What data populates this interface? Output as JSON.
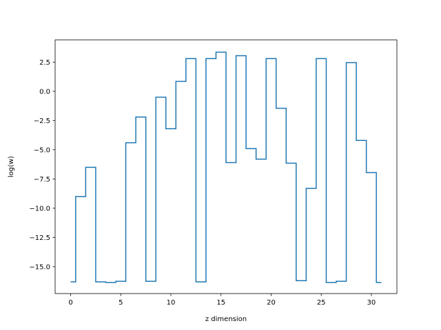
{
  "chart_data": {
    "type": "line",
    "drawstyle": "steps-mid",
    "title": "",
    "xlabel": "z dimension",
    "ylabel": "log(w)",
    "xlim": [
      -1.55,
      32.55
    ],
    "ylim": [
      -17.3,
      4.4
    ],
    "xticks": [
      0,
      5,
      10,
      15,
      20,
      25,
      30
    ],
    "xtick_labels": [
      "0",
      "5",
      "10",
      "15",
      "20",
      "25",
      "30"
    ],
    "yticks": [
      2.5,
      0.0,
      -2.5,
      -5.0,
      -7.5,
      -10.0,
      -12.5,
      -15.0
    ],
    "ytick_labels": [
      "2.5",
      "0.0",
      "−2.5",
      "−5.0",
      "−7.5",
      "−10.0",
      "−12.5",
      "−15.0"
    ],
    "grid": false,
    "legend": false,
    "series": [
      {
        "color": "#1f77b4",
        "x": [
          0,
          1,
          2,
          3,
          4,
          5,
          6,
          7,
          8,
          9,
          10,
          11,
          12,
          13,
          14,
          15,
          16,
          17,
          18,
          19,
          20,
          21,
          22,
          23,
          24,
          25,
          26,
          27,
          28,
          29,
          30,
          31
        ],
        "y": [
          -16.3,
          -9.0,
          -6.5,
          -16.3,
          -16.35,
          -16.25,
          -4.4,
          -2.2,
          -16.25,
          -0.5,
          -3.2,
          0.85,
          2.8,
          -16.3,
          2.8,
          3.35,
          -6.1,
          3.05,
          -4.9,
          -5.8,
          2.8,
          -1.45,
          -6.15,
          -16.2,
          -8.3,
          2.8,
          -16.35,
          -16.25,
          2.45,
          -4.2,
          -6.95,
          -16.35
        ]
      }
    ]
  }
}
